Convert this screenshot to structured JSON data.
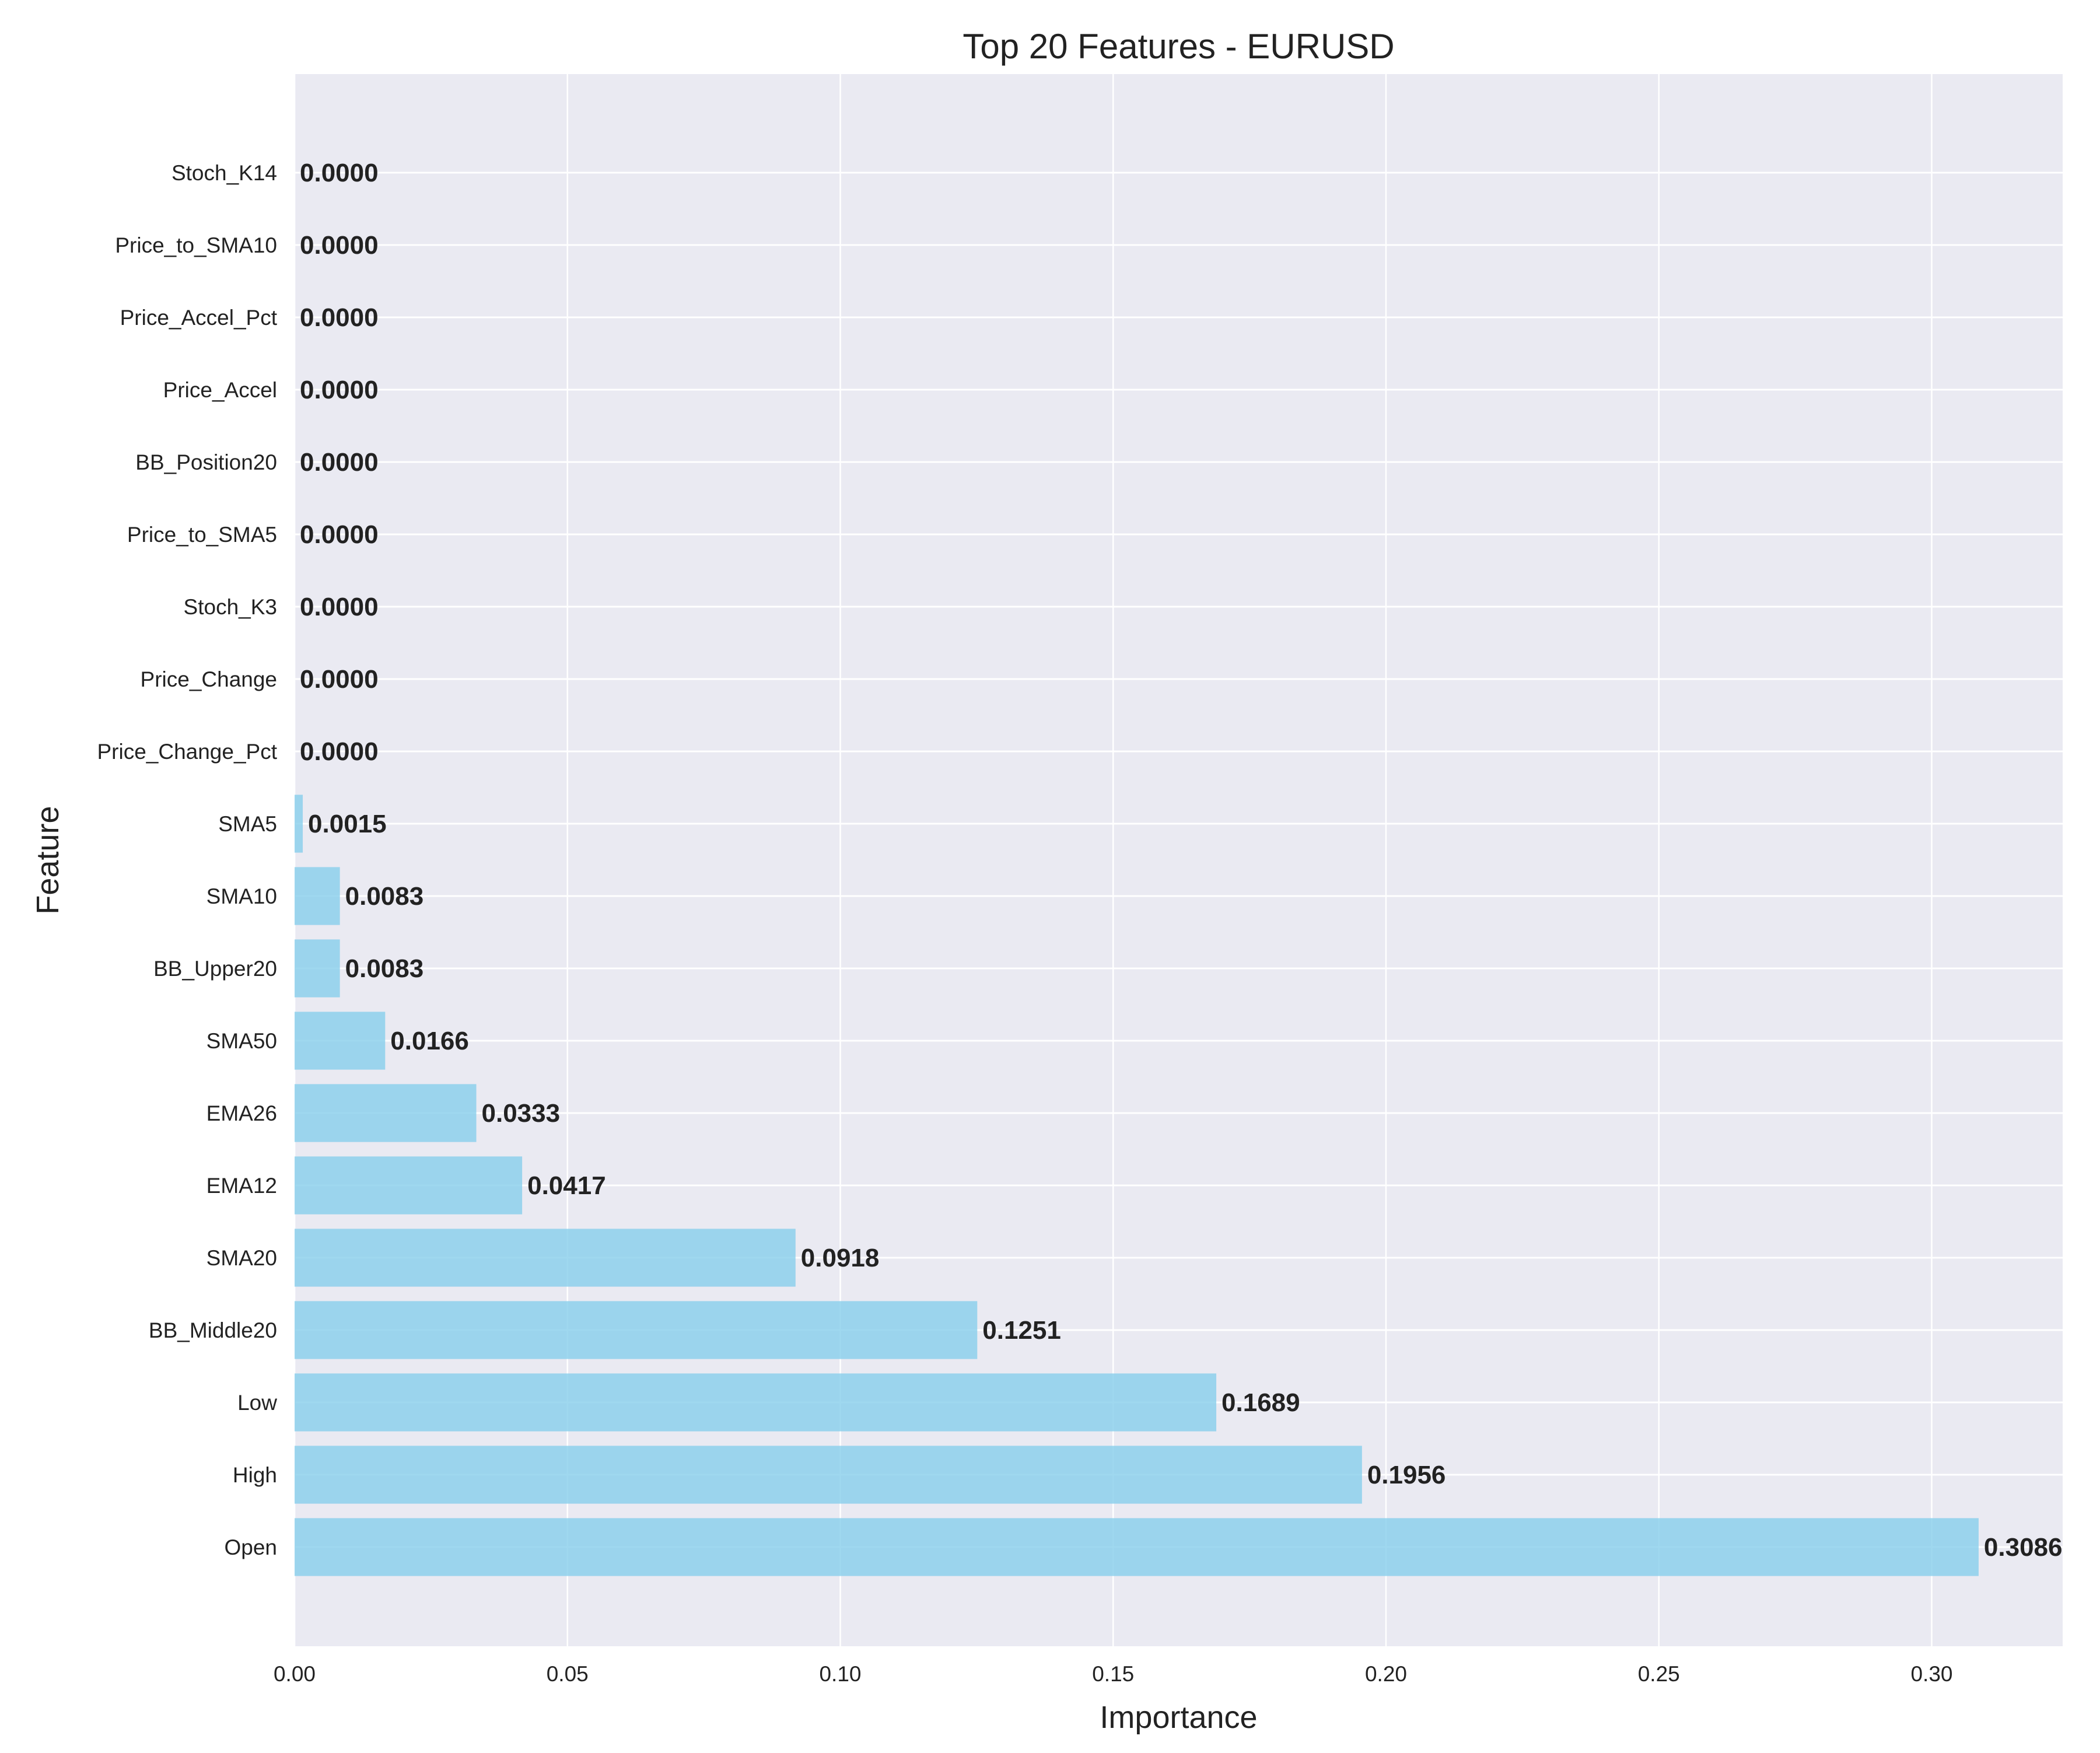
{
  "chart_data": {
    "type": "bar",
    "orientation": "horizontal",
    "title": "Top 20 Features - EURUSD",
    "xlabel": "Importance",
    "ylabel": "Feature",
    "categories": [
      "Open",
      "High",
      "Low",
      "BB_Middle20",
      "SMA20",
      "EMA12",
      "EMA26",
      "SMA50",
      "BB_Upper20",
      "SMA10",
      "SMA5",
      "Price_Change_Pct",
      "Price_Change",
      "Stoch_K3",
      "Price_to_SMA5",
      "BB_Position20",
      "Price_Accel",
      "Price_Accel_Pct",
      "Price_to_SMA10",
      "Stoch_K14"
    ],
    "values": [
      0.3086,
      0.1956,
      0.1689,
      0.1251,
      0.0918,
      0.0417,
      0.0333,
      0.0166,
      0.0083,
      0.0083,
      0.0015,
      0.0,
      0.0,
      0.0,
      0.0,
      0.0,
      0.0,
      0.0,
      0.0,
      0.0
    ],
    "value_labels": [
      "0.3086",
      "0.1956",
      "0.1689",
      "0.1251",
      "0.0918",
      "0.0417",
      "0.0333",
      "0.0166",
      "0.0083",
      "0.0083",
      "0.0015",
      "0.0000",
      "0.0000",
      "0.0000",
      "0.0000",
      "0.0000",
      "0.0000",
      "0.0000",
      "0.0000",
      "0.0000"
    ],
    "xlim": [
      0,
      0.324
    ],
    "xticks": [
      0.0,
      0.05,
      0.1,
      0.15,
      0.2,
      0.25,
      0.3
    ],
    "xtick_labels": [
      "0.00",
      "0.05",
      "0.10",
      "0.15",
      "0.20",
      "0.25",
      "0.30"
    ],
    "grid": true,
    "legend": false,
    "colors": {
      "bar": "#87ceeb",
      "plot_background": "#eaeaf2",
      "grid": "#ffffff",
      "text": "#222222"
    }
  }
}
